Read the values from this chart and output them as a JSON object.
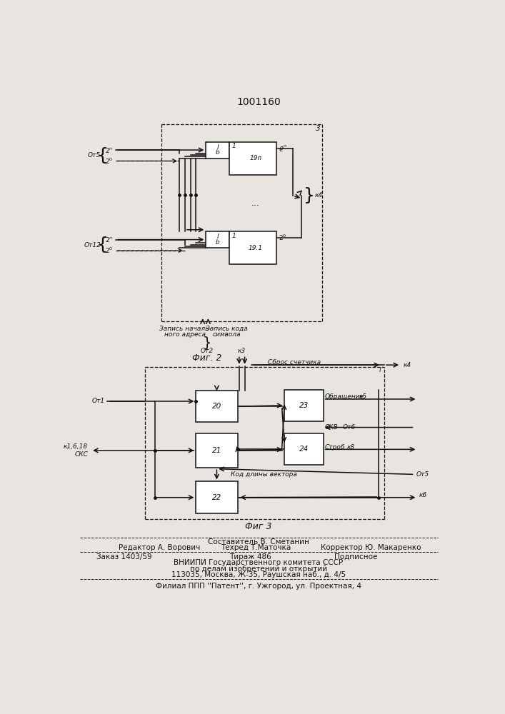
{
  "title": "1001160",
  "background_color": "#e8e5e0",
  "line_color": "#111111",
  "text_color": "#111111",
  "fig2_label": "Фиг. 2",
  "fig3_label": "Фиг 3",
  "footnote1": "Составитель В. Сметанин",
  "footnote2a": "Редактор А. Ворович",
  "footnote2b": "Техред Т.Маточка",
  "footnote2c": "Корректор Ю. Макаренко",
  "footnote3a": "Заказ 1403/59",
  "footnote3b": "Тираж 486",
  "footnote3c": "Подписное",
  "footnote4": "ВНИИПИ Государственного комитета СССР",
  "footnote5": "по делам изобретений и открытий",
  "footnote6": "113035, Москва, Ж-35, Раушская наб., д. 4/5",
  "footnote7": "Филиал ППП ''Патент'', г. Ужгород, ул. Проектная, 4"
}
